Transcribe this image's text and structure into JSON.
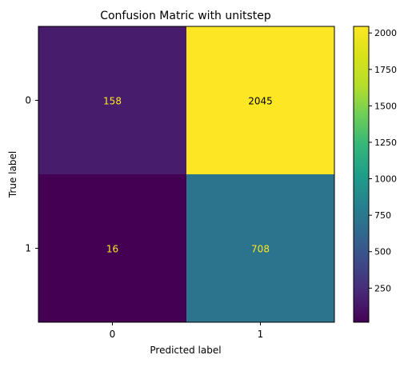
{
  "chart_data": {
    "type": "heatmap",
    "title": "Confusion Matric with unitstep",
    "xlabel": "Predicted label",
    "ylabel": "True label",
    "x_categories": [
      "0",
      "1"
    ],
    "y_categories": [
      "0",
      "1"
    ],
    "matrix": [
      [
        158,
        2045
      ],
      [
        16,
        708
      ]
    ],
    "colorbar": {
      "ticks": [
        250,
        500,
        750,
        1000,
        1250,
        1500,
        1750,
        2000
      ],
      "vmin": 16,
      "vmax": 2045,
      "colormap": "viridis"
    },
    "text_colors": {
      "dark_cell": "#fde725",
      "light_cell": "#000000"
    }
  }
}
